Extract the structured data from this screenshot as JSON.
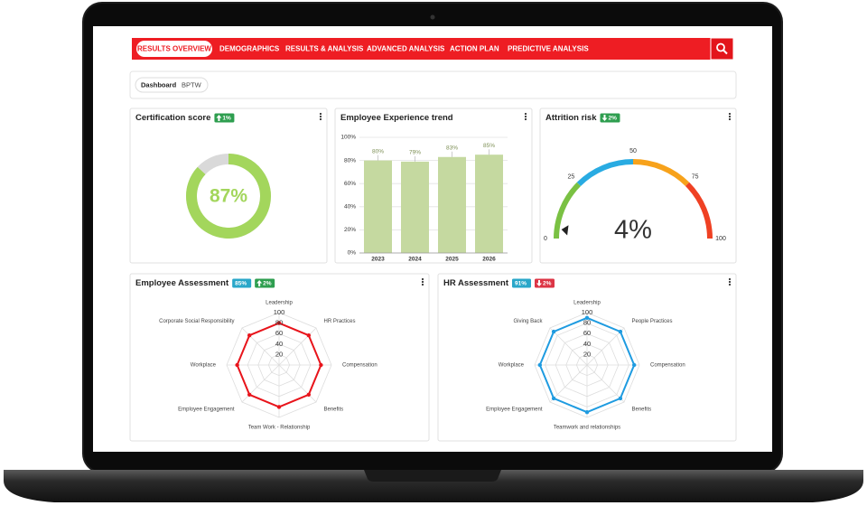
{
  "nav": {
    "items": [
      "RESULTS OVERVIEW",
      "DEMOGRAPHICS",
      "RESULTS & ANALYSIS",
      "ADVANCED ANALYSIS",
      "ACTION PLAN",
      "PREDICTIVE ANALYSIS"
    ],
    "active": 0
  },
  "breadcrumb": [
    "Dashboard",
    "BPTW"
  ],
  "chart_data": [
    {
      "type": "donut",
      "title": "Certification score",
      "badges": [
        {
          "label": "1%",
          "direction": "up",
          "color": "#2e9e4f"
        }
      ],
      "values": [
        87
      ],
      "value_labels": [
        "87%"
      ],
      "ylim": [
        0,
        100
      ],
      "color": "#a3d65c",
      "track_color": "#d9d9d9"
    },
    {
      "type": "bar",
      "title": "Employee Experience trend",
      "categories": [
        "2023",
        "2024",
        "2025",
        "2026"
      ],
      "values": [
        80,
        79,
        83,
        85
      ],
      "value_labels": [
        "80%",
        "79%",
        "83%",
        "85%"
      ],
      "color": "#c5d9a0",
      "ylim": [
        0,
        100
      ],
      "yticks": [
        {
          "value": 0,
          "label": "0%"
        },
        {
          "value": 20,
          "label": "20%"
        },
        {
          "value": 40,
          "label": "40%"
        },
        {
          "value": 60,
          "label": "60%"
        },
        {
          "value": 80,
          "label": "80%"
        },
        {
          "value": 100,
          "label": "100%"
        }
      ],
      "grid": true
    },
    {
      "type": "gauge",
      "title": "Attrition risk",
      "badges": [
        {
          "label": "2%",
          "direction": "down",
          "color": "#2e9e4f"
        }
      ],
      "values": [
        4
      ],
      "value_labels": [
        "4%"
      ],
      "ylim": [
        0,
        100
      ],
      "yticks": [
        0,
        25,
        50,
        75,
        100
      ],
      "band_colors": [
        "#7ac143",
        "#29abe2",
        "#f7a21b",
        "#ef4123"
      ]
    },
    {
      "type": "radar",
      "title": "Employee Assessment",
      "badges": [
        {
          "label": "85%",
          "direction": null,
          "color": "#29a7c9"
        },
        {
          "label": "2%",
          "direction": "up",
          "color": "#2e9e4f"
        }
      ],
      "categories": [
        "Leadership",
        "HR Practices",
        "Compensation",
        "Benefits",
        "Team Work - Relationship",
        "Employee Engagement",
        "Workplace",
        "Corporate Social Responsibility"
      ],
      "values": [
        80,
        80,
        80,
        80,
        80,
        80,
        80,
        80
      ],
      "color": "#e8141b",
      "ylim": [
        0,
        100
      ],
      "yticks": [
        20,
        40,
        60,
        80,
        100
      ]
    },
    {
      "type": "radar",
      "title": "HR Assessment",
      "badges": [
        {
          "label": "91%",
          "direction": null,
          "color": "#29a7c9"
        },
        {
          "label": "2%",
          "direction": "down",
          "color": "#dc3545"
        }
      ],
      "categories": [
        "Leadership",
        "People Practices",
        "Compensation",
        "Benefits",
        "Teamwork and relationships",
        "Employee Engagement",
        "Workplace",
        "Giving Back"
      ],
      "values": [
        90,
        90,
        90,
        90,
        90,
        90,
        90,
        90
      ],
      "color": "#1e9be0",
      "ylim": [
        0,
        100
      ],
      "yticks": [
        20,
        40,
        60,
        80,
        100
      ]
    }
  ]
}
